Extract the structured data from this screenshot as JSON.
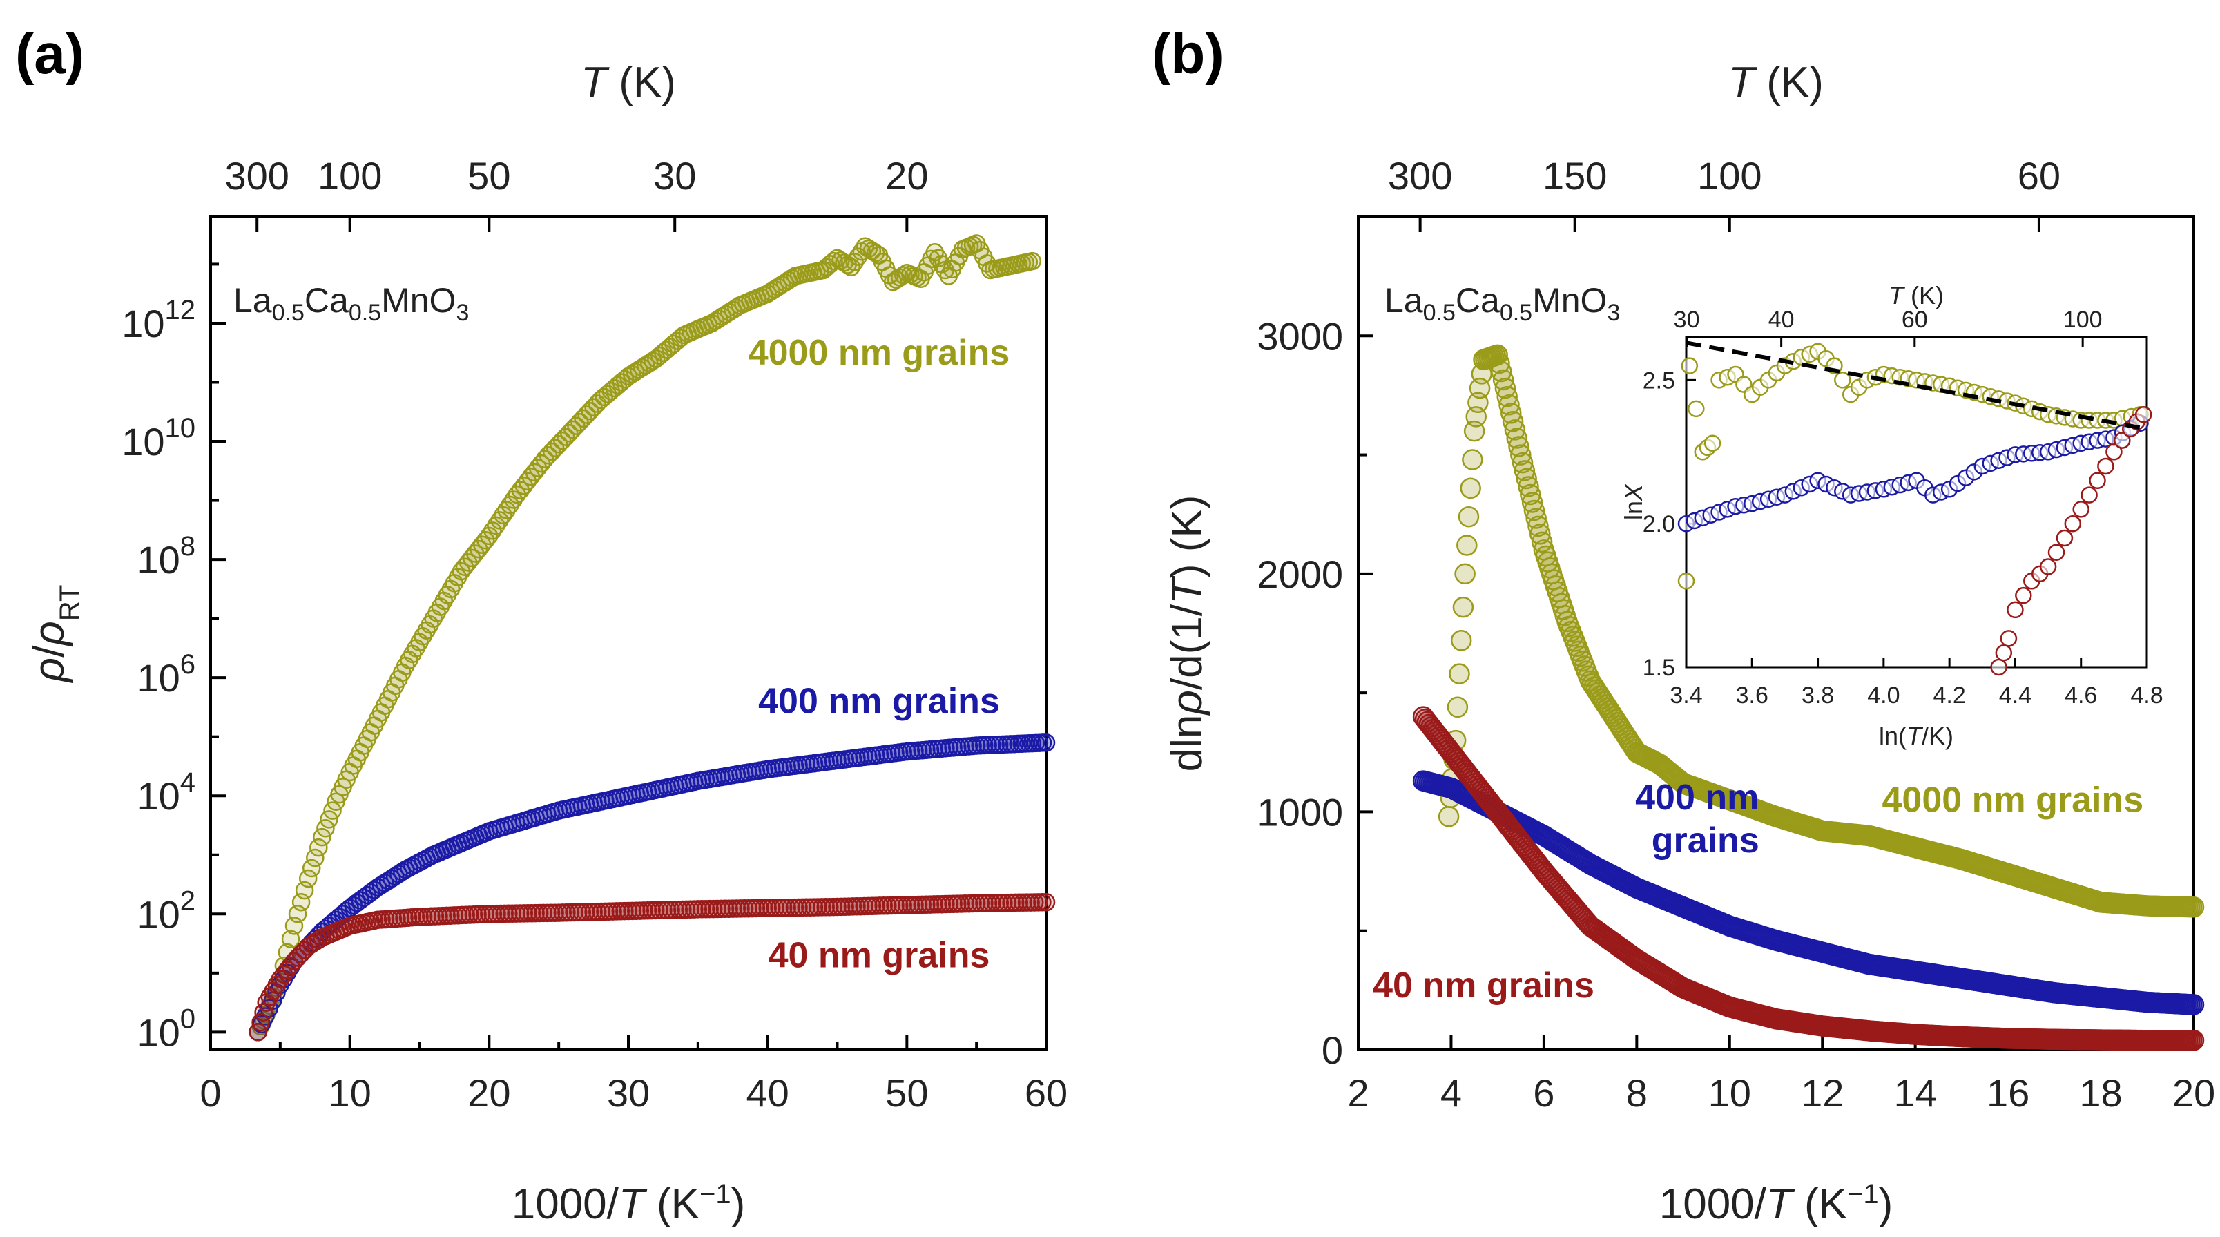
{
  "chart_data": [
    {
      "id": "a",
      "type": "scatter",
      "panel_label": "(a)",
      "material": {
        "base": [
          "La",
          "Ca",
          "MnO"
        ],
        "subs": [
          "0.5",
          "0.5",
          "3"
        ]
      },
      "xlabel": "1000/T (K⁻¹)",
      "ylabel": "ρ/ρRT",
      "top_xlabel": "T (K)",
      "xlim": [
        0,
        60
      ],
      "ylim_log10": [
        -0.3,
        13.8
      ],
      "yscale": "log",
      "x_ticks": [
        0,
        10,
        20,
        30,
        40,
        50,
        60
      ],
      "x_tick_labels": [
        "0",
        "10",
        "20",
        "30",
        "40",
        "50",
        "60"
      ],
      "y_ticks_log10": [
        0,
        2,
        4,
        6,
        8,
        10,
        12
      ],
      "y_tick_labels": [
        {
          "base": "10",
          "exp": "0"
        },
        {
          "base": "10",
          "exp": "2"
        },
        {
          "base": "10",
          "exp": "4"
        },
        {
          "base": "10",
          "exp": "6"
        },
        {
          "base": "10",
          "exp": "8"
        },
        {
          "base": "10",
          "exp": "10"
        },
        {
          "base": "10",
          "exp": "12"
        }
      ],
      "top_ticks_T": [
        300,
        100,
        50,
        30,
        20
      ],
      "top_tick_labels": [
        "300",
        "100",
        "50",
        "30",
        "20"
      ],
      "series": [
        {
          "name": "4000 nm grains",
          "color": "#9b9b1a",
          "label_anchor": [
            48,
            11.3
          ],
          "points": [
            [
              3.4,
              0
            ],
            [
              4,
              0.3
            ],
            [
              5,
              0.9
            ],
            [
              6,
              1.8
            ],
            [
              7,
              2.6
            ],
            [
              8,
              3.3
            ],
            [
              9,
              3.9
            ],
            [
              10,
              4.4
            ],
            [
              12,
              5.3
            ],
            [
              14,
              6.2
            ],
            [
              16,
              7
            ],
            [
              18,
              7.8
            ],
            [
              20,
              8.4
            ],
            [
              22,
              9.1
            ],
            [
              24,
              9.7
            ],
            [
              26,
              10.2
            ],
            [
              28,
              10.7
            ],
            [
              30,
              11.1
            ],
            [
              32,
              11.4
            ],
            [
              34,
              11.8
            ],
            [
              36,
              12
            ],
            [
              38,
              12.3
            ],
            [
              40,
              12.5
            ],
            [
              42,
              12.8
            ],
            [
              44,
              12.9
            ],
            [
              45,
              13.1
            ],
            [
              46,
              12.95
            ],
            [
              47,
              13.3
            ],
            [
              48,
              13.15
            ],
            [
              49,
              12.7
            ],
            [
              50,
              12.85
            ],
            [
              51,
              12.75
            ],
            [
              52,
              13.2
            ],
            [
              53,
              12.8
            ],
            [
              54,
              13.25
            ],
            [
              55,
              13.35
            ],
            [
              56,
              12.9
            ],
            [
              57,
              12.95
            ],
            [
              58,
              13
            ],
            [
              59,
              13.05
            ]
          ]
        },
        {
          "name": "400 nm grains",
          "color": "#1a1aa6",
          "label_anchor": [
            48,
            5.4
          ],
          "points": [
            [
              3.4,
              0
            ],
            [
              5,
              0.8
            ],
            [
              6,
              1.2
            ],
            [
              8,
              1.7
            ],
            [
              10,
              2.1
            ],
            [
              12,
              2.45
            ],
            [
              14,
              2.75
            ],
            [
              16,
              3
            ],
            [
              18,
              3.2
            ],
            [
              20,
              3.4
            ],
            [
              25,
              3.75
            ],
            [
              30,
              4
            ],
            [
              35,
              4.25
            ],
            [
              40,
              4.45
            ],
            [
              45,
              4.6
            ],
            [
              50,
              4.75
            ],
            [
              55,
              4.85
            ],
            [
              58,
              4.88
            ],
            [
              60,
              4.9
            ]
          ]
        },
        {
          "name": "40 nm grains",
          "color": "#9a1a1a",
          "label_anchor": [
            48,
            1.1
          ],
          "points": [
            [
              3.4,
              0
            ],
            [
              4,
              0.5
            ],
            [
              5,
              0.9
            ],
            [
              6,
              1.2
            ],
            [
              7,
              1.45
            ],
            [
              8,
              1.6
            ],
            [
              10,
              1.8
            ],
            [
              12,
              1.9
            ],
            [
              15,
              1.95
            ],
            [
              20,
              2
            ],
            [
              25,
              2.02
            ],
            [
              30,
              2.05
            ],
            [
              35,
              2.08
            ],
            [
              40,
              2.1
            ],
            [
              45,
              2.12
            ],
            [
              50,
              2.15
            ],
            [
              55,
              2.18
            ],
            [
              60,
              2.2
            ]
          ]
        }
      ]
    },
    {
      "id": "b",
      "type": "scatter",
      "panel_label": "(b)",
      "material": {
        "base": [
          "La",
          "Ca",
          "MnO"
        ],
        "subs": [
          "0.5",
          "0.5",
          "3"
        ]
      },
      "xlabel": "1000/T (K⁻¹)",
      "ylabel": "dlnρ/d(1/T) (K)",
      "top_xlabel": "T (K)",
      "xlim": [
        2,
        20
      ],
      "ylim": [
        0,
        3500
      ],
      "x_ticks": [
        2,
        4,
        6,
        8,
        10,
        12,
        14,
        16,
        18,
        20
      ],
      "x_tick_labels": [
        "2",
        "4",
        "6",
        "8",
        "10",
        "12",
        "14",
        "16",
        "18",
        "20"
      ],
      "y_ticks": [
        0,
        1000,
        2000,
        3000
      ],
      "y_tick_labels": [
        "0",
        "1000",
        "2000",
        "3000"
      ],
      "top_ticks_T": [
        300,
        150,
        100,
        60
      ],
      "top_tick_labels": [
        "300",
        "150",
        "100",
        "60"
      ],
      "series": [
        {
          "name": "4000 nm grains",
          "color": "#9b9b1a",
          "label_anchor": [
            16.1,
            1000
          ],
          "points": [
            [
              3.95,
              980
            ],
            [
              4.1,
              1300
            ],
            [
              4.3,
              2000
            ],
            [
              4.5,
              2600
            ],
            [
              4.7,
              2900
            ],
            [
              5,
              2920
            ],
            [
              5.5,
              2500
            ],
            [
              6,
              2100
            ],
            [
              6.5,
              1800
            ],
            [
              7,
              1550
            ],
            [
              7.5,
              1400
            ],
            [
              8,
              1250
            ],
            [
              8.5,
              1200
            ],
            [
              9,
              1120
            ],
            [
              10,
              1050
            ],
            [
              11,
              980
            ],
            [
              12,
              920
            ],
            [
              13,
              900
            ],
            [
              14,
              850
            ],
            [
              15,
              800
            ],
            [
              16,
              740
            ],
            [
              17,
              680
            ],
            [
              18,
              620
            ],
            [
              19,
              605
            ],
            [
              20,
              600
            ]
          ]
        },
        {
          "name": "400 nm grains",
          "color": "#1a1aa6",
          "label_anchor": [
            9.3,
            1010
          ],
          "label_lines": [
            "400 nm",
            "grains"
          ],
          "points": [
            [
              3.4,
              1130
            ],
            [
              4,
              1100
            ],
            [
              5,
              1000
            ],
            [
              6,
              900
            ],
            [
              7,
              780
            ],
            [
              8,
              680
            ],
            [
              9,
              600
            ],
            [
              10,
              520
            ],
            [
              11,
              460
            ],
            [
              12,
              410
            ],
            [
              13,
              360
            ],
            [
              14,
              330
            ],
            [
              15,
              300
            ],
            [
              16,
              270
            ],
            [
              17,
              240
            ],
            [
              18,
              220
            ],
            [
              19,
              200
            ],
            [
              20,
              190
            ]
          ]
        },
        {
          "name": "40 nm grains",
          "color": "#9a1a1a",
          "label_anchor": [
            4.7,
            220
          ],
          "points": [
            [
              3.4,
              1400
            ],
            [
              4,
              1250
            ],
            [
              5,
              1000
            ],
            [
              6,
              750
            ],
            [
              7,
              520
            ],
            [
              8,
              380
            ],
            [
              9,
              260
            ],
            [
              10,
              180
            ],
            [
              11,
              130
            ],
            [
              12,
              100
            ],
            [
              13,
              80
            ],
            [
              14,
              65
            ],
            [
              15,
              55
            ],
            [
              16,
              48
            ],
            [
              17,
              44
            ],
            [
              18,
              42
            ],
            [
              19,
              40
            ],
            [
              20,
              40
            ]
          ]
        }
      ],
      "inset": {
        "xlabel": "ln(T/K)",
        "ylabel": "lnX",
        "top_xlabel": "T (K)",
        "xlim": [
          3.4,
          4.8
        ],
        "ylim": [
          1.5,
          2.65
        ],
        "x_ticks": [
          3.4,
          3.6,
          3.8,
          4.0,
          4.2,
          4.4,
          4.6,
          4.8
        ],
        "x_tick_labels": [
          "3.4",
          "3.6",
          "3.8",
          "4.0",
          "4.2",
          "4.4",
          "4.6",
          "4.8"
        ],
        "y_ticks": [
          1.5,
          2.0,
          2.5
        ],
        "y_tick_labels": [
          "1.5",
          "2.0",
          "2.5"
        ],
        "top_ticks_T": [
          30,
          40,
          60,
          100
        ],
        "top_tick_labels": [
          "30",
          "40",
          "60",
          "100"
        ],
        "fit_line": [
          [
            3.4,
            2.63
          ],
          [
            4.8,
            2.33
          ]
        ],
        "series": [
          {
            "name": "4000 nm grains",
            "color": "#9b9b1a",
            "points": [
              [
                3.4,
                1.8
              ],
              [
                3.41,
                2.55
              ],
              [
                3.45,
                2.25
              ],
              [
                3.48,
                2.28
              ],
              [
                3.5,
                2.5
              ],
              [
                3.55,
                2.52
              ],
              [
                3.6,
                2.45
              ],
              [
                3.65,
                2.5
              ],
              [
                3.7,
                2.55
              ],
              [
                3.75,
                2.58
              ],
              [
                3.8,
                2.6
              ],
              [
                3.85,
                2.55
              ],
              [
                3.9,
                2.45
              ],
              [
                3.95,
                2.5
              ],
              [
                4.0,
                2.52
              ],
              [
                4.1,
                2.5
              ],
              [
                4.2,
                2.48
              ],
              [
                4.3,
                2.45
              ],
              [
                4.4,
                2.42
              ],
              [
                4.5,
                2.38
              ],
              [
                4.6,
                2.36
              ],
              [
                4.7,
                2.36
              ],
              [
                4.78,
                2.38
              ]
            ]
          },
          {
            "name": "400 nm grains",
            "color": "#1a1aa6",
            "points": [
              [
                3.4,
                2.0
              ],
              [
                3.55,
                2.06
              ],
              [
                3.6,
                2.07
              ],
              [
                3.7,
                2.1
              ],
              [
                3.8,
                2.15
              ],
              [
                3.9,
                2.1
              ],
              [
                4.0,
                2.12
              ],
              [
                4.1,
                2.15
              ],
              [
                4.15,
                2.1
              ],
              [
                4.2,
                2.12
              ],
              [
                4.3,
                2.2
              ],
              [
                4.4,
                2.24
              ],
              [
                4.5,
                2.25
              ],
              [
                4.6,
                2.28
              ],
              [
                4.7,
                2.3
              ],
              [
                4.78,
                2.35
              ]
            ]
          },
          {
            "name": "40 nm grains",
            "color": "#9a1a1a",
            "points": [
              [
                4.35,
                1.5
              ],
              [
                4.38,
                1.6
              ],
              [
                4.4,
                1.7
              ],
              [
                4.45,
                1.8
              ],
              [
                4.5,
                1.85
              ],
              [
                4.55,
                1.95
              ],
              [
                4.6,
                2.05
              ],
              [
                4.65,
                2.15
              ],
              [
                4.7,
                2.25
              ],
              [
                4.75,
                2.33
              ],
              [
                4.79,
                2.38
              ]
            ]
          }
        ]
      }
    }
  ]
}
